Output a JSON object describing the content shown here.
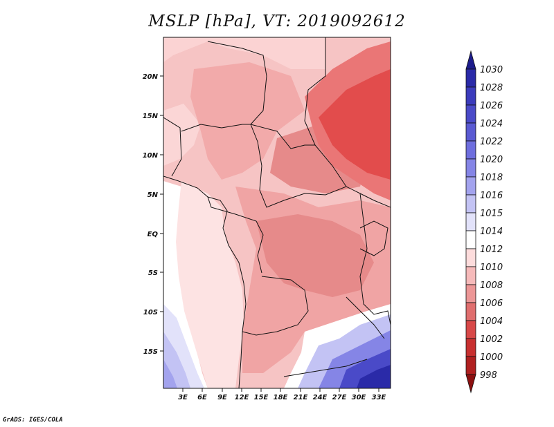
{
  "title": "MSLP [hPa], VT: 2019092612",
  "credit": "GrADS: IGES/COLA",
  "axes": {
    "lat_labels": [
      "20N",
      "15N",
      "10N",
      "5N",
      "EQ",
      "5S",
      "10S",
      "15S"
    ],
    "lon_labels": [
      "3E",
      "6E",
      "9E",
      "12E",
      "15E",
      "18E",
      "21E",
      "24E",
      "27E",
      "30E",
      "33E"
    ]
  },
  "colorbar": {
    "levels": [
      "1030",
      "1028",
      "1026",
      "1024",
      "1022",
      "1020",
      "1018",
      "1016",
      "1015",
      "1014",
      "1012",
      "1010",
      "1008",
      "1006",
      "1004",
      "1002",
      "1000",
      "998"
    ],
    "colors": [
      "#1d1c8c",
      "#2a2aa8",
      "#3b3bbc",
      "#4a4ac8",
      "#5a5ad2",
      "#6e6ede",
      "#8585e6",
      "#a3a3ee",
      "#c3c3f4",
      "#e2e2fa",
      "#ffffff",
      "#fddcdc",
      "#f6baba",
      "#ec9696",
      "#e06e6e",
      "#d84848",
      "#c83030",
      "#b02020",
      "#8c1010"
    ]
  },
  "colors": {
    "land_edge": "#111111",
    "ocean_pale": "#fde6e6",
    "warm_core": "#e24c4c",
    "cold_core": "#2c2ca6"
  }
}
